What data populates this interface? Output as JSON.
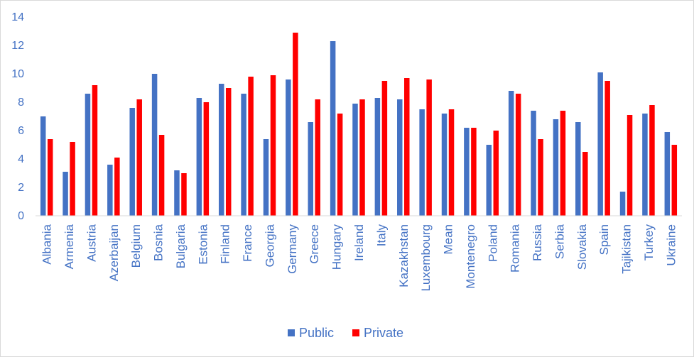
{
  "chart_data": {
    "type": "bar",
    "categories": [
      "Albania",
      "Armenia",
      "Austria",
      "Azerbaijan",
      "Belgium",
      "Bosnia",
      "Bulgaria",
      "Estonia",
      "Finland",
      "France",
      "Georgia",
      "Germany",
      "Greece",
      "Hungary",
      "Ireland",
      "Italy",
      "Kazakhstan",
      "Luxembourg",
      "Mean",
      "Montenegro",
      "Poland",
      "Romania",
      "Russia",
      "Serbia",
      "Slovakia",
      "Spain",
      "Tajikistan",
      "Turkey",
      "Ukraine"
    ],
    "series": [
      {
        "name": "Public",
        "color": "#4472c4",
        "values": [
          7.0,
          3.1,
          8.6,
          3.6,
          7.6,
          10.0,
          3.2,
          8.3,
          9.3,
          8.6,
          5.4,
          9.6,
          6.6,
          12.3,
          7.9,
          8.3,
          8.2,
          7.5,
          7.2,
          6.2,
          5.0,
          8.8,
          7.4,
          6.8,
          6.6,
          10.1,
          1.7,
          7.2,
          5.9
        ]
      },
      {
        "name": "Private",
        "color": "#ff0000",
        "values": [
          5.4,
          5.2,
          9.2,
          4.1,
          8.2,
          5.7,
          3.0,
          8.0,
          9.0,
          9.8,
          9.9,
          12.9,
          8.2,
          7.2,
          8.2,
          9.5,
          9.7,
          9.6,
          7.5,
          6.2,
          6.0,
          8.6,
          5.4,
          7.4,
          4.5,
          9.5,
          7.1,
          7.8,
          5.0
        ]
      }
    ],
    "y_ticks": [
      "0",
      "2",
      "4",
      "6",
      "8",
      "10",
      "12",
      "14"
    ],
    "ylim": [
      0,
      14
    ],
    "grid": false,
    "legend_position": "bottom"
  }
}
